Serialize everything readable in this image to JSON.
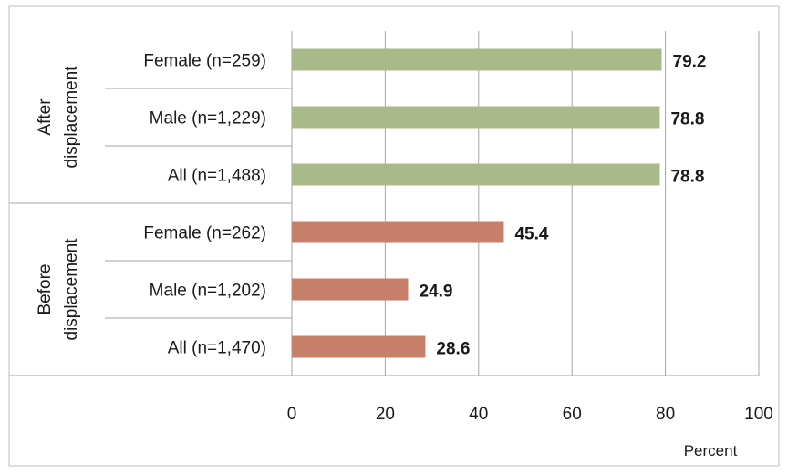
{
  "chart_data": {
    "type": "bar",
    "orientation": "horizontal",
    "groups": [
      {
        "label": "After displacement",
        "label_lines": [
          "After",
          "displacement"
        ],
        "color": "#a9b98a",
        "categories": [
          "Female (n=259)",
          "Male (n=1,229)",
          "All (n=1,488)"
        ],
        "values": [
          79.2,
          78.8,
          78.8
        ]
      },
      {
        "label": "Before displacement",
        "label_lines": [
          "Before",
          "displacement"
        ],
        "color": "#c6806a",
        "categories": [
          "Female (n=262)",
          "Male (n=1,202)",
          "All (n=1,470)"
        ],
        "values": [
          45.4,
          24.9,
          28.6
        ]
      }
    ],
    "xlabel": "Percent",
    "xlim": [
      0,
      100
    ],
    "xticks": [
      0,
      20,
      40,
      60,
      80,
      100
    ],
    "grid": "vertical",
    "legend": "none",
    "value_labels": true
  }
}
